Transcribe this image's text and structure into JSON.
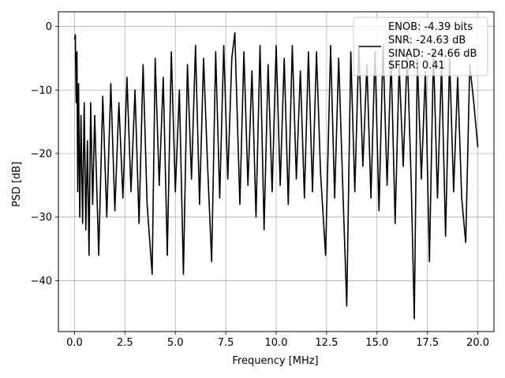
{
  "chart_data": {
    "type": "line",
    "xlabel": "Frequency [MHz]",
    "ylabel": "PSD [dB]",
    "xlim": [
      -0.8,
      20.8
    ],
    "ylim": [
      -48,
      2.3
    ],
    "xticks": [
      0.0,
      2.5,
      5.0,
      7.5,
      10.0,
      12.5,
      15.0,
      17.5,
      20.0
    ],
    "xtick_labels": [
      "0.0",
      "2.5",
      "5.0",
      "7.5",
      "10.0",
      "12.5",
      "15.0",
      "17.5",
      "20.0"
    ],
    "yticks": [
      0,
      -10,
      -20,
      -30,
      -40
    ],
    "ytick_labels": [
      "0",
      "−10",
      "−20",
      "−30",
      "−40"
    ],
    "grid": true,
    "legend_position": "top-right",
    "line_color": "#000000",
    "series": [
      {
        "name": "ENOB: -4.39 bits\nSNR: -24.63 dB\nSINAD: -24.66 dB\nSFDR: 0.41",
        "legend_lines": [
          "ENOB: -4.39 bits",
          "SNR: -24.63 dB",
          "SINAD: -24.66 dB",
          "SFDR: 0.41"
        ],
        "x": [
          0.0,
          0.04,
          0.08,
          0.12,
          0.16,
          0.2,
          0.26,
          0.32,
          0.4,
          0.48,
          0.56,
          0.64,
          0.72,
          0.8,
          0.9,
          1.0,
          1.2,
          1.4,
          1.6,
          1.8,
          2.0,
          2.2,
          2.4,
          2.6,
          2.8,
          3.0,
          3.2,
          3.4,
          3.6,
          3.85,
          4.0,
          4.2,
          4.4,
          4.6,
          4.8,
          5.0,
          5.2,
          5.4,
          5.6,
          5.8,
          6.0,
          6.2,
          6.4,
          6.6,
          6.8,
          7.0,
          7.2,
          7.4,
          7.6,
          7.8,
          7.95,
          8.2,
          8.4,
          8.6,
          8.8,
          9.0,
          9.2,
          9.4,
          9.6,
          9.8,
          10.0,
          10.2,
          10.4,
          10.6,
          10.8,
          11.0,
          11.2,
          11.4,
          11.6,
          11.8,
          12.0,
          12.2,
          12.45,
          12.7,
          12.9,
          13.1,
          13.3,
          13.5,
          13.7,
          13.9,
          14.1,
          14.3,
          14.5,
          14.7,
          14.9,
          15.1,
          15.3,
          15.5,
          15.7,
          15.9,
          16.1,
          16.3,
          16.5,
          16.7,
          16.85,
          17.0,
          17.2,
          17.4,
          17.6,
          17.8,
          18.0,
          18.2,
          18.4,
          18.6,
          18.8,
          19.0,
          19.2,
          19.4,
          19.6,
          19.8,
          20.0
        ],
        "y": [
          -2.0,
          -1.3,
          -12.0,
          -4.0,
          -26.0,
          -9.0,
          -30.0,
          -14.0,
          -31.0,
          -12.0,
          -32.0,
          -18.0,
          -36.0,
          -12.0,
          -28.0,
          -14.0,
          -36.0,
          -11.0,
          -30.0,
          -9.0,
          -29.0,
          -12.0,
          -27.0,
          -8.0,
          -26.0,
          -10.0,
          -31.0,
          -6.0,
          -28.0,
          -39.0,
          -5.0,
          -25.0,
          -8.0,
          -36.0,
          -4.0,
          -26.0,
          -10.0,
          -39.0,
          -6.0,
          -24.0,
          -3.0,
          -28.0,
          -5.0,
          -22.0,
          -37.0,
          -4.0,
          -27.0,
          -3.0,
          -24.0,
          -5.0,
          -1.0,
          -28.0,
          -4.0,
          -25.0,
          -7.0,
          -30.0,
          -3.0,
          -32.0,
          -6.0,
          -26.0,
          -3.0,
          -25.0,
          -5.0,
          -28.0,
          -3.0,
          -24.0,
          -7.0,
          -27.0,
          -4.0,
          -26.0,
          -4.0,
          -23.0,
          -36.0,
          -3.0,
          -27.0,
          -5.0,
          -25.0,
          -44.0,
          -4.0,
          -26.0,
          -3.0,
          -22.0,
          -6.0,
          -27.0,
          -4.0,
          -29.0,
          -3.0,
          -25.0,
          -5.0,
          -31.0,
          -6.0,
          -22.0,
          -4.0,
          -25.0,
          -46.0,
          -5.0,
          -24.0,
          -7.0,
          -37.0,
          -4.0,
          -27.0,
          -6.0,
          -33.0,
          -5.0,
          -26.0,
          -8.0,
          -27.0,
          -34.0,
          -6.0,
          -12.0,
          -19.0
        ]
      }
    ]
  }
}
